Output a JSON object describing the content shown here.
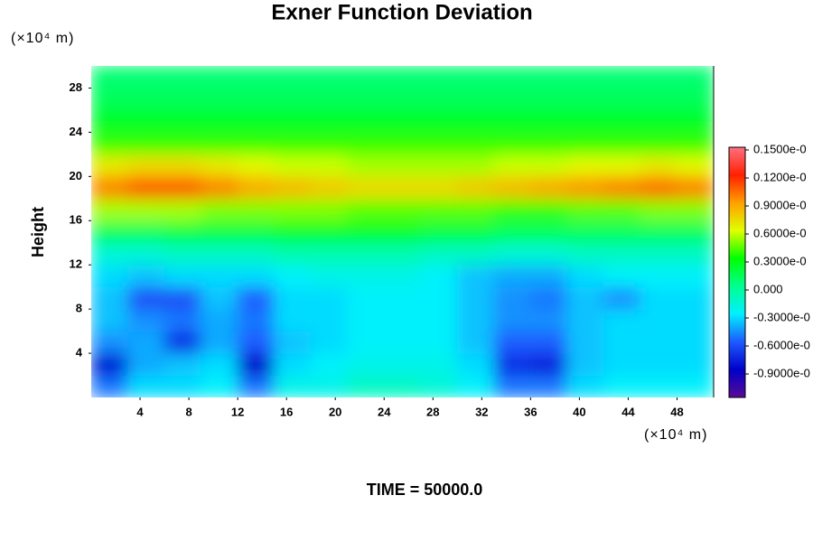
{
  "chart_data": {
    "type": "contour",
    "title": "Exner Function Deviation",
    "ylabel": "Height",
    "xunit": "(×10⁴ m)",
    "yunit": "(×10⁴ m)",
    "footer": "TIME = 50000.0",
    "xlim": [
      0,
      51
    ],
    "ylim": [
      0,
      30
    ],
    "xticks": [
      4,
      8,
      12,
      16,
      20,
      24,
      28,
      32,
      36,
      40,
      44,
      48
    ],
    "yticks": [
      4,
      8,
      12,
      16,
      20,
      24,
      28
    ],
    "x": [
      1.5,
      4.5,
      7.5,
      10.5,
      13.5,
      16.5,
      19.5,
      22.5,
      25.5,
      28.5,
      31.5,
      34.5,
      37.5,
      40.5,
      43.5,
      46.5,
      49.5
    ],
    "y": [
      1,
      3,
      5,
      7,
      9,
      11,
      13,
      15,
      17,
      19,
      21,
      23,
      25,
      27,
      29
    ],
    "z": [
      [
        -0.05,
        -0.03,
        -0.03,
        -0.025,
        -0.05,
        -0.02,
        -0.02,
        -0.01,
        -0.01,
        -0.015,
        -0.025,
        -0.05,
        -0.05,
        -0.03,
        -0.025,
        -0.025,
        -0.025
      ],
      [
        -0.08,
        -0.04,
        -0.035,
        -0.03,
        -0.085,
        -0.03,
        -0.025,
        -0.02,
        -0.02,
        -0.02,
        -0.03,
        -0.07,
        -0.075,
        -0.035,
        -0.03,
        -0.03,
        -0.03
      ],
      [
        -0.045,
        -0.04,
        -0.07,
        -0.04,
        -0.055,
        -0.035,
        -0.03,
        -0.025,
        -0.025,
        -0.025,
        -0.035,
        -0.055,
        -0.055,
        -0.035,
        -0.03,
        -0.03,
        -0.03
      ],
      [
        -0.035,
        -0.045,
        -0.05,
        -0.04,
        -0.05,
        -0.03,
        -0.03,
        -0.025,
        -0.025,
        -0.025,
        -0.035,
        -0.045,
        -0.045,
        -0.035,
        -0.03,
        -0.03,
        -0.03
      ],
      [
        -0.035,
        -0.06,
        -0.06,
        -0.035,
        -0.055,
        -0.03,
        -0.03,
        -0.025,
        -0.025,
        -0.025,
        -0.035,
        -0.045,
        -0.05,
        -0.035,
        -0.045,
        -0.03,
        -0.03
      ],
      [
        -0.03,
        -0.035,
        -0.03,
        -0.03,
        -0.03,
        -0.025,
        -0.02,
        -0.02,
        -0.02,
        -0.025,
        -0.035,
        -0.04,
        -0.04,
        -0.03,
        -0.025,
        -0.025,
        -0.025
      ],
      [
        -0.015,
        -0.015,
        -0.01,
        -0.01,
        -0.01,
        -0.005,
        -0.005,
        -0.005,
        -0.005,
        -0.01,
        -0.01,
        -0.015,
        -0.015,
        -0.01,
        -0.01,
        -0.01,
        -0.01
      ],
      [
        0.015,
        0.015,
        0.02,
        0.02,
        0.02,
        0.025,
        0.025,
        0.025,
        0.025,
        0.02,
        0.02,
        0.015,
        0.015,
        0.015,
        0.015,
        0.015,
        0.015
      ],
      [
        0.055,
        0.055,
        0.055,
        0.05,
        0.05,
        0.05,
        0.05,
        0.045,
        0.045,
        0.045,
        0.045,
        0.04,
        0.04,
        0.045,
        0.045,
        0.05,
        0.05
      ],
      [
        0.1,
        0.11,
        0.11,
        0.1,
        0.09,
        0.085,
        0.08,
        0.075,
        0.075,
        0.075,
        0.08,
        0.085,
        0.09,
        0.095,
        0.1,
        0.105,
        0.1
      ],
      [
        0.07,
        0.075,
        0.075,
        0.07,
        0.065,
        0.06,
        0.06,
        0.055,
        0.055,
        0.055,
        0.055,
        0.06,
        0.06,
        0.065,
        0.065,
        0.07,
        0.065
      ],
      [
        0.04,
        0.04,
        0.04,
        0.04,
        0.04,
        0.04,
        0.04,
        0.04,
        0.04,
        0.04,
        0.04,
        0.04,
        0.04,
        0.04,
        0.04,
        0.04,
        0.04
      ],
      [
        0.025,
        0.025,
        0.025,
        0.025,
        0.025,
        0.025,
        0.025,
        0.025,
        0.025,
        0.025,
        0.025,
        0.025,
        0.025,
        0.025,
        0.025,
        0.025,
        0.025
      ],
      [
        0.015,
        0.015,
        0.015,
        0.015,
        0.015,
        0.015,
        0.015,
        0.015,
        0.015,
        0.015,
        0.015,
        0.015,
        0.015,
        0.015,
        0.015,
        0.015,
        0.015
      ],
      [
        0.01,
        0.01,
        0.01,
        0.01,
        0.01,
        0.01,
        0.01,
        0.01,
        0.01,
        0.01,
        0.01,
        0.01,
        0.01,
        0.01,
        0.01,
        0.01,
        0.01
      ]
    ],
    "zlim": [
      -0.115,
      0.152
    ],
    "colorscale": [
      "#5a0a96",
      "#0000c8",
      "#1e5aff",
      "#00f0ff",
      "#00ff90",
      "#00ff00",
      "#e0ff00",
      "#ffa000",
      "#ff2000",
      "#ff7080"
    ],
    "colorbar_labels": [
      "0.1500e-0",
      "0.1200e-0",
      "0.9000e-0",
      "0.6000e-0",
      "0.3000e-0",
      "0.000",
      "-0.3000e-0",
      "-0.6000e-0",
      "-0.9000e-0"
    ]
  }
}
